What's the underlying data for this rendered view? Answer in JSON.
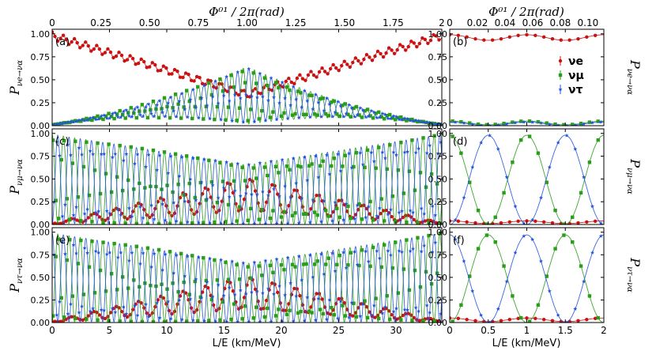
{
  "figure": {
    "top_axis_label": "Φ⁰¹ / 2π(rad)",
    "bottom_axis_label": "L/E (km/MeV)",
    "colors": {
      "nu_e": "#cc1111",
      "nu_mu": "#2a9d19",
      "nu_tau": "#2255dd"
    }
  },
  "chart_data": [
    {
      "panel": "a",
      "type": "line",
      "tag": "(a)",
      "ylabel": "P_{νe→να}",
      "x_range": [
        0,
        34
      ],
      "y_range": [
        0,
        1.05
      ],
      "x_ticks": [
        "0",
        "5",
        "10",
        "15",
        "20",
        "25",
        "30"
      ],
      "y_ticks": [
        "0.00",
        "0.25",
        "0.50",
        "0.75",
        "1.00"
      ],
      "top_x_ticks": [
        "0",
        "0.25",
        "0.50",
        "0.75",
        "1.00",
        "1.25",
        "1.50",
        "1.75",
        "2"
      ],
      "series": [
        {
          "name": "νe",
          "envelope": [
            [
              0,
              0.98
            ],
            [
              17,
              0.34
            ],
            [
              34,
              0.98
            ]
          ],
          "amplitude": 0.04
        },
        {
          "name": "νμ",
          "envelope": [
            [
              0,
              0.01
            ],
            [
              17,
              0.33
            ],
            [
              34,
              0.01
            ]
          ],
          "amplitude": 0.3
        },
        {
          "name": "ντ",
          "envelope": [
            [
              0,
              0.01
            ],
            [
              17,
              0.33
            ],
            [
              34,
              0.01
            ]
          ],
          "amplitude": 0.3
        }
      ]
    },
    {
      "panel": "b",
      "type": "line",
      "tag": "(b)",
      "ylabel": "P_{νe→να}",
      "x_range": [
        0,
        2
      ],
      "y_range": [
        0,
        1.05
      ],
      "x_ticks": [
        "0",
        "0.5",
        "1",
        "1.5",
        "2"
      ],
      "y_ticks": [
        "0.00",
        "0.25",
        "0.50",
        "0.75",
        "1.00"
      ],
      "top_x_ticks": [
        "0",
        "0.02",
        "0.04",
        "0.06",
        "0.08",
        "0.10"
      ],
      "legend": {
        "position": "top-right",
        "entries": [
          "νe",
          "νμ",
          "ντ"
        ]
      },
      "series": [
        {
          "name": "νe",
          "mean": 0.96,
          "amplitude": 0.03
        },
        {
          "name": "νμ",
          "mean": 0.03,
          "amplitude": 0.02
        },
        {
          "name": "ντ",
          "mean": 0.02,
          "amplitude": 0.02
        }
      ]
    },
    {
      "panel": "c",
      "type": "line",
      "tag": "(c)",
      "ylabel": "P_{νμ→να}",
      "x_range": [
        0,
        34
      ],
      "y_range": [
        0,
        1.05
      ],
      "x_ticks": [
        "0",
        "5",
        "10",
        "15",
        "20",
        "25",
        "30"
      ],
      "y_ticks": [
        "0.00",
        "0.25",
        "0.50",
        "0.75",
        "1.00"
      ],
      "series": [
        {
          "name": "νe",
          "envelope": [
            [
              0,
              0.01
            ],
            [
              17,
              0.33
            ],
            [
              34,
              0.01
            ]
          ],
          "amplitude": 0.3
        },
        {
          "name": "νμ",
          "envelope": [
            [
              0,
              0.5
            ],
            [
              17,
              0.33
            ],
            [
              34,
              0.5
            ]
          ],
          "amplitude": 0.48
        },
        {
          "name": "ντ",
          "envelope": [
            [
              0,
              0.5
            ],
            [
              17,
              0.33
            ],
            [
              34,
              0.5
            ]
          ],
          "amplitude": 0.48
        }
      ]
    },
    {
      "panel": "d",
      "type": "line",
      "tag": "(d)",
      "ylabel": "P_{νμ→να}",
      "x_range": [
        0,
        2
      ],
      "y_range": [
        0,
        1.05
      ],
      "x_ticks": [
        "0",
        "0.5",
        "1",
        "1.5",
        "2"
      ],
      "y_ticks": [
        "0.00",
        "0.25",
        "0.50",
        "0.75",
        "1.00"
      ],
      "series": [
        {
          "name": "νe",
          "mean": 0.025,
          "amplitude": 0.015
        },
        {
          "name": "νμ",
          "period": 1.0,
          "peak_at": 1.0,
          "peak": 0.98
        },
        {
          "name": "ντ",
          "period": 1.0,
          "peak_at": 0.5,
          "peak": 0.98
        }
      ]
    },
    {
      "panel": "e",
      "type": "line",
      "tag": "(e)",
      "ylabel": "P_{ντ→να}",
      "x_range": [
        0,
        34
      ],
      "y_range": [
        0,
        1.05
      ],
      "x_ticks": [
        "0",
        "5",
        "10",
        "15",
        "20",
        "25",
        "30"
      ],
      "y_ticks": [
        "0.00",
        "0.25",
        "0.50",
        "0.75",
        "1.00"
      ],
      "series": [
        {
          "name": "νe",
          "envelope": [
            [
              0,
              0.01
            ],
            [
              17,
              0.33
            ],
            [
              34,
              0.01
            ]
          ],
          "amplitude": 0.3
        },
        {
          "name": "νμ",
          "envelope": [
            [
              0,
              0.5
            ],
            [
              17,
              0.33
            ],
            [
              34,
              0.5
            ]
          ],
          "amplitude": 0.48
        },
        {
          "name": "ντ",
          "envelope": [
            [
              0,
              0.5
            ],
            [
              17,
              0.33
            ],
            [
              34,
              0.5
            ]
          ],
          "amplitude": 0.48
        }
      ]
    },
    {
      "panel": "f",
      "type": "line",
      "tag": "(f)",
      "ylabel": "P_{ντ→να}",
      "x_range": [
        0,
        2
      ],
      "y_range": [
        0,
        1.05
      ],
      "x_ticks": [
        "0",
        "0.5",
        "1",
        "1.5",
        "2"
      ],
      "y_ticks": [
        "0.00",
        "0.25",
        "0.50",
        "0.75",
        "1.00"
      ],
      "series": [
        {
          "name": "νe",
          "mean": 0.03,
          "amplitude": 0.02
        },
        {
          "name": "νμ",
          "period": 1.0,
          "peak_at": 0.5,
          "peak": 0.97
        },
        {
          "name": "ντ",
          "period": 1.0,
          "peak_at": 1.0,
          "peak": 0.97
        }
      ]
    }
  ]
}
